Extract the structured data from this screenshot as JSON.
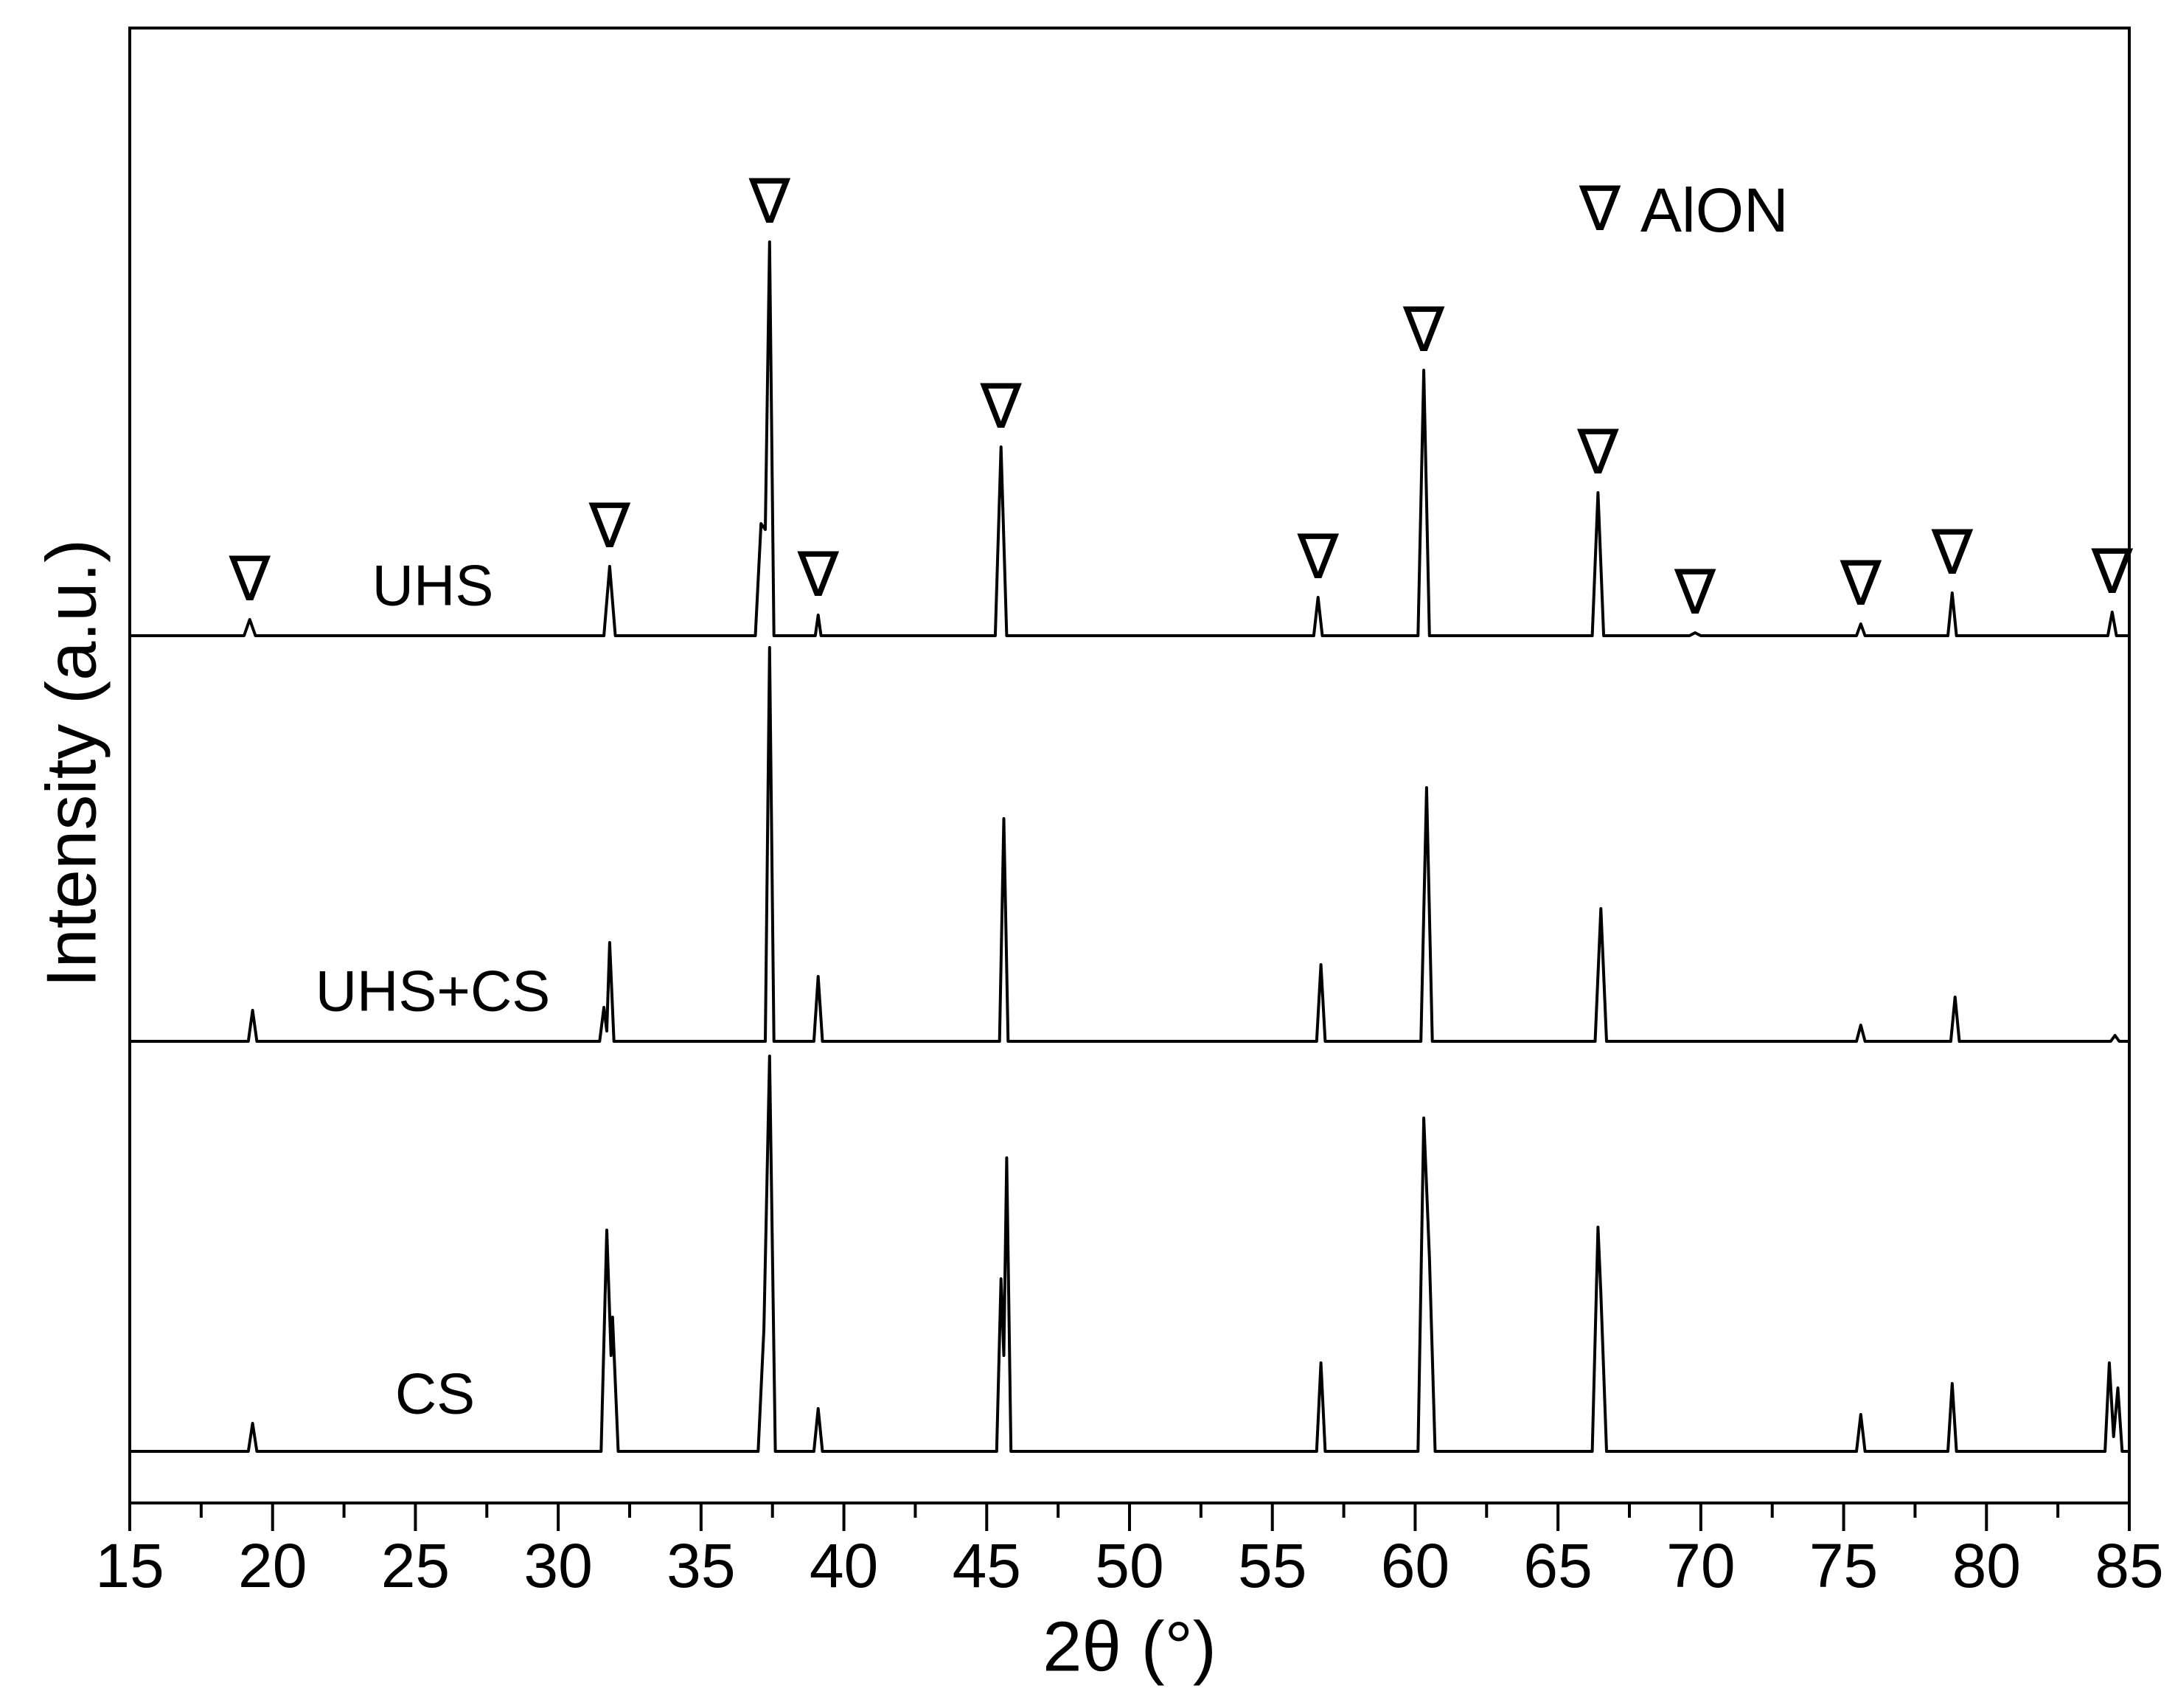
{
  "chart_data": {
    "type": "line",
    "xlabel": "2θ (°)",
    "ylabel": "Intensity (a.u.)",
    "xlim": [
      15,
      85
    ],
    "xticks": [
      15,
      20,
      25,
      30,
      35,
      40,
      45,
      50,
      55,
      60,
      65,
      70,
      75,
      80,
      85
    ],
    "xminorticks": [
      17.5,
      22.5,
      27.5,
      32.5,
      37.5,
      42.5,
      47.5,
      52.5,
      57.5,
      62.5,
      67.5,
      72.5,
      77.5,
      82.5
    ],
    "ylim": [
      0,
      100
    ],
    "series": [
      {
        "name": "UHS",
        "color": "#000000",
        "x": [
          15,
          19.0,
          19.2,
          19.4,
          31.6,
          31.8,
          32.0,
          36.9,
          37.1,
          37.25,
          37.4,
          37.55,
          39.0,
          39.1,
          39.2,
          45.3,
          45.5,
          45.7,
          56.45,
          56.6,
          56.75,
          60.1,
          60.3,
          60.5,
          66.2,
          66.4,
          66.6,
          69.6,
          69.8,
          70.0,
          75.45,
          75.6,
          75.75,
          78.65,
          78.8,
          78.95,
          84.25,
          84.4,
          84.55,
          85
        ],
        "values": [
          58.8,
          58.8,
          59.9,
          58.8,
          58.8,
          63.5,
          58.8,
          58.8,
          66.4,
          66,
          85.5,
          58.8,
          58.8,
          60.2,
          58.8,
          58.8,
          71.6,
          58.8,
          58.8,
          61.4,
          58.8,
          58.8,
          76.8,
          58.8,
          58.8,
          68.5,
          58.8,
          58.8,
          59,
          58.8,
          58.8,
          59.6,
          58.8,
          58.8,
          61.7,
          58.8,
          58.8,
          60.4,
          58.8,
          58.8
        ]
      },
      {
        "name": "UHS+CS",
        "color": "#000000",
        "x": [
          15,
          19.15,
          19.3,
          19.45,
          31.45,
          31.6,
          31.7,
          31.8,
          31.95,
          37.25,
          37.4,
          37.55,
          38.95,
          39.1,
          39.25,
          45.45,
          45.6,
          45.75,
          56.55,
          56.7,
          56.85,
          60.2,
          60.4,
          60.6,
          66.3,
          66.5,
          66.7,
          75.45,
          75.6,
          75.75,
          78.75,
          78.9,
          79.05,
          84.35,
          84.5,
          84.65,
          85
        ],
        "values": [
          31.3,
          31.3,
          33.4,
          31.3,
          31.3,
          33.6,
          32,
          38,
          31.3,
          31.3,
          58,
          31.3,
          31.3,
          35.7,
          31.3,
          31.3,
          46.4,
          31.3,
          31.3,
          36.5,
          31.3,
          31.3,
          48.5,
          31.3,
          31.3,
          40.3,
          31.3,
          31.3,
          32.4,
          31.3,
          31.3,
          34.3,
          31.3,
          31.3,
          31.7,
          31.3,
          31.3
        ]
      },
      {
        "name": "CS",
        "color": "#000000",
        "x": [
          15,
          19.15,
          19.3,
          19.45,
          31.5,
          31.7,
          31.85,
          31.9,
          32.1,
          37.0,
          37.2,
          37.4,
          37.6,
          38.95,
          39.1,
          39.25,
          45.35,
          45.5,
          45.6,
          45.7,
          45.85,
          56.55,
          56.7,
          56.85,
          60.1,
          60.3,
          60.5,
          60.7,
          66.2,
          66.4,
          66.5,
          66.7,
          75.45,
          75.6,
          75.75,
          78.65,
          78.8,
          78.95,
          84.15,
          84.3,
          84.45,
          84.6,
          84.75,
          85
        ],
        "values": [
          3.5,
          3.5,
          5.4,
          3.5,
          3.5,
          18.5,
          10,
          12.6,
          3.5,
          3.5,
          11.8,
          30.3,
          3.5,
          3.5,
          6.4,
          3.5,
          3.5,
          15.2,
          10,
          23.4,
          3.5,
          3.5,
          9.5,
          3.5,
          3.5,
          26.1,
          16.6,
          3.5,
          3.5,
          18.7,
          14.2,
          3.5,
          3.5,
          6.0,
          3.5,
          3.5,
          8.1,
          3.5,
          3.5,
          9.5,
          4.5,
          7.8,
          3.5,
          3.5
        ]
      }
    ],
    "peak_marker": {
      "symbol": "∇",
      "label": "AlON",
      "x": [
        19.2,
        31.8,
        37.4,
        39.1,
        45.5,
        56.6,
        60.3,
        66.4,
        69.8,
        75.6,
        78.8,
        84.4
      ]
    }
  }
}
